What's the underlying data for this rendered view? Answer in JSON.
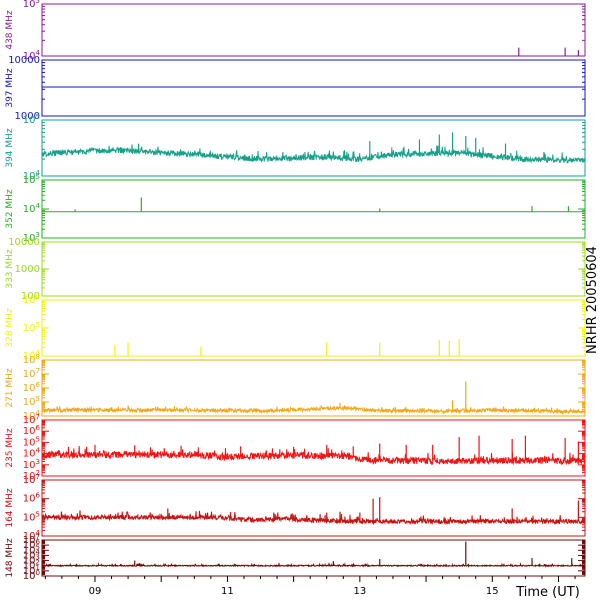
{
  "side_label": "NRHR 20050604",
  "x_axis_label": "Time (UT)",
  "x_ticks": [
    "09",
    "11",
    "13",
    "15"
  ],
  "chart_data": {
    "type": "line",
    "title": "",
    "xlabel": "Time (UT)",
    "x_unit": "hours UT",
    "xlim": [
      8.2,
      16.4
    ],
    "x_tick_values": [
      9,
      11,
      13,
      15
    ],
    "x_tick_labels": [
      "09",
      "11",
      "13",
      "15"
    ],
    "panels": [
      {
        "name": "438 MHz",
        "color": "#8b1a9a",
        "log": true,
        "ylim": [
          10000,
          100000
        ],
        "y_ticks": [
          {
            "v": 10000,
            "m": "10",
            "e": "4"
          },
          {
            "v": 100000,
            "m": "10",
            "e": "5"
          }
        ],
        "baseline": 10000,
        "jitter": 0,
        "noise_hi": 1.0,
        "level_segments": [],
        "bursts": [
          [
            15.4,
            14500
          ],
          [
            16.1,
            14500
          ],
          [
            16.3,
            13000
          ]
        ]
      },
      {
        "name": "397 MHz",
        "color": "#1414c8",
        "log": true,
        "ylim": [
          1000,
          10000
        ],
        "y_ticks": [
          {
            "v": 1000,
            "m": "1000",
            "e": ""
          },
          {
            "v": 10000,
            "m": "10000",
            "e": ""
          }
        ],
        "baseline": 3300,
        "jitter": 0,
        "noise_hi": 1.0,
        "level_segments": [],
        "bursts": []
      },
      {
        "name": "394 MHz",
        "color": "#16a08a",
        "log": true,
        "ylim": [
          10000,
          100000
        ],
        "y_ticks": [
          {
            "v": 10000,
            "m": "10",
            "e": "4"
          },
          {
            "v": 100000,
            "m": "10",
            "e": "5"
          }
        ],
        "baseline": 29000,
        "jitter": 0.05,
        "noise_hi": 1.25,
        "level_segments": [
          [
            8.2,
            25000
          ],
          [
            9.3,
            29000
          ],
          [
            10.5,
            24000
          ],
          [
            11.5,
            20000
          ],
          [
            12.5,
            22000
          ],
          [
            13.0,
            20000
          ],
          [
            13.5,
            24000
          ],
          [
            14.5,
            26000
          ],
          [
            15.5,
            20000
          ],
          [
            16.4,
            19000
          ]
        ],
        "bursts": [
          [
            13.15,
            42000
          ],
          [
            13.9,
            45000
          ],
          [
            14.2,
            55000
          ],
          [
            14.4,
            60000
          ],
          [
            14.6,
            52000
          ],
          [
            14.75,
            48000
          ],
          [
            15.2,
            38000
          ]
        ]
      },
      {
        "name": "352 MHz",
        "color": "#26b026",
        "log": true,
        "ylim": [
          1000,
          100000
        ],
        "y_ticks": [
          {
            "v": 1000,
            "m": "10",
            "e": "3"
          },
          {
            "v": 10000,
            "m": "10",
            "e": "4"
          },
          {
            "v": 100000,
            "m": "10",
            "e": "5"
          }
        ],
        "baseline": 8000,
        "jitter": 0,
        "noise_hi": 1.0,
        "level_segments": [],
        "bursts": [
          [
            8.7,
            9800
          ],
          [
            9.7,
            25000
          ],
          [
            13.3,
            10500
          ],
          [
            15.6,
            12500
          ],
          [
            16.15,
            12500
          ]
        ]
      },
      {
        "name": "333 MHz",
        "color": "#9adc1a",
        "log": true,
        "ylim": [
          100,
          10000
        ],
        "y_ticks": [
          {
            "v": 100,
            "m": "100",
            "e": ""
          },
          {
            "v": 1000,
            "m": "1000",
            "e": ""
          },
          {
            "v": 10000,
            "m": "10000",
            "e": ""
          }
        ],
        "baseline": 10000,
        "jitter": 0,
        "noise_hi": 1.0,
        "level_segments": [],
        "bursts": []
      },
      {
        "name": "328 MHz",
        "color": "#f2f20a",
        "log": true,
        "ylim": [
          10000,
          1000000
        ],
        "y_ticks": [
          {
            "v": 10000,
            "m": "10",
            "e": "4"
          },
          {
            "v": 100000,
            "m": "10",
            "e": "5"
          },
          {
            "v": 1000000,
            "m": "10",
            "e": "6"
          }
        ],
        "baseline": 10000,
        "jitter": 0,
        "noise_hi": 1.0,
        "level_segments": [],
        "bursts": [
          [
            9.3,
            25000
          ],
          [
            9.5,
            30000
          ],
          [
            10.6,
            22000
          ],
          [
            12.5,
            30000
          ],
          [
            13.3,
            30000
          ],
          [
            14.2,
            38000
          ],
          [
            14.35,
            35000
          ],
          [
            14.5,
            40000
          ]
        ]
      },
      {
        "name": "271 MHz",
        "color": "#f0a814",
        "log": true,
        "ylim": [
          10000,
          100000000
        ],
        "y_ticks": [
          {
            "v": 10000,
            "m": "10",
            "e": "4"
          },
          {
            "v": 100000,
            "m": "10",
            "e": "5"
          },
          {
            "v": 1000000,
            "m": "10",
            "e": "6"
          },
          {
            "v": 10000000,
            "m": "10",
            "e": "7"
          },
          {
            "v": 100000000,
            "m": "10",
            "e": "8"
          }
        ],
        "baseline": 25000,
        "jitter": 0.12,
        "noise_hi": 1.5,
        "level_segments": [
          [
            8.2,
            26000
          ],
          [
            10.5,
            26000
          ],
          [
            11.5,
            22000
          ],
          [
            12.2,
            30000
          ],
          [
            12.8,
            38000
          ],
          [
            13.2,
            25000
          ],
          [
            14.5,
            22000
          ],
          [
            15.0,
            26000
          ],
          [
            16.4,
            20000
          ]
        ],
        "bursts": [
          [
            9.5,
            55000
          ],
          [
            10.2,
            50000
          ],
          [
            12.7,
            85000
          ],
          [
            14.4,
            130000
          ],
          [
            14.6,
            3000000
          ]
        ]
      },
      {
        "name": "235 MHz",
        "color": "#f01414",
        "log": true,
        "ylim": [
          100,
          10000000
        ],
        "y_ticks": [
          {
            "v": 100,
            "m": "10",
            "e": "2"
          },
          {
            "v": 1000,
            "m": "10",
            "e": "3"
          },
          {
            "v": 10000,
            "m": "10",
            "e": "4"
          },
          {
            "v": 100000,
            "m": "10",
            "e": "5"
          },
          {
            "v": 1000000,
            "m": "10",
            "e": "6"
          },
          {
            "v": 10000000,
            "m": "10",
            "e": "7"
          }
        ],
        "baseline": 8000,
        "jitter": 0.3,
        "noise_hi": 3.0,
        "level_segments": [
          [
            8.2,
            8000
          ],
          [
            10.5,
            8000
          ],
          [
            11.0,
            5000
          ],
          [
            11.5,
            6000
          ],
          [
            12.0,
            7000
          ],
          [
            12.8,
            6000
          ],
          [
            13.1,
            2500
          ],
          [
            14.5,
            2200
          ],
          [
            15.5,
            2500
          ],
          [
            16.4,
            2200
          ]
        ],
        "bursts": [
          [
            8.6,
            40000
          ],
          [
            9.0,
            60000
          ],
          [
            9.6,
            55000
          ],
          [
            10.3,
            50000
          ],
          [
            11.2,
            45000
          ],
          [
            12.0,
            40000
          ],
          [
            12.5,
            60000
          ],
          [
            12.9,
            45000
          ],
          [
            13.3,
            80000
          ],
          [
            13.7,
            60000
          ],
          [
            14.1,
            60000
          ],
          [
            14.5,
            300000
          ],
          [
            14.8,
            400000
          ],
          [
            15.3,
            200000
          ],
          [
            15.5,
            400000
          ],
          [
            16.1,
            250000
          ],
          [
            16.3,
            120000
          ]
        ]
      },
      {
        "name": "164 MHz",
        "color": "#c81010",
        "log": true,
        "ylim": [
          10000,
          10000000
        ],
        "y_ticks": [
          {
            "v": 10000,
            "m": "10",
            "e": "4"
          },
          {
            "v": 100000,
            "m": "10",
            "e": "5"
          },
          {
            "v": 1000000,
            "m": "10",
            "e": "6"
          },
          {
            "v": 10000000,
            "m": "10",
            "e": "7"
          }
        ],
        "baseline": 100000,
        "jitter": 0.12,
        "noise_hi": 1.8,
        "level_segments": [
          [
            8.2,
            100000
          ],
          [
            10.8,
            100000
          ],
          [
            11.4,
            70000
          ],
          [
            11.9,
            90000
          ],
          [
            12.0,
            75000
          ],
          [
            13.0,
            60000
          ],
          [
            14.0,
            60000
          ],
          [
            16.4,
            60000
          ]
        ],
        "bursts": [
          [
            10.1,
            300000
          ],
          [
            11.7,
            180000
          ],
          [
            12.5,
            180000
          ],
          [
            12.7,
            200000
          ],
          [
            13.0,
            180000
          ],
          [
            13.2,
            1000000
          ],
          [
            13.3,
            1200000
          ],
          [
            15.3,
            300000
          ],
          [
            16.3,
            800000
          ]
        ]
      },
      {
        "name": "148 MHz",
        "color": "#6e0a0a",
        "log": true,
        "ylim": [
          1,
          10000000
        ],
        "y_ticks": [
          {
            "v": 1,
            "m": "10",
            "e": "0"
          },
          {
            "v": 10,
            "m": "10",
            "e": "1"
          },
          {
            "v": 100,
            "m": "10",
            "e": "2"
          },
          {
            "v": 1000,
            "m": "10",
            "e": "3"
          },
          {
            "v": 10000,
            "m": "10",
            "e": "4"
          },
          {
            "v": 100000,
            "m": "10",
            "e": "5"
          },
          {
            "v": 1000000,
            "m": "10",
            "e": "6"
          },
          {
            "v": 10000000,
            "m": "10",
            "e": "7"
          }
        ],
        "baseline": 100,
        "jitter": 0.1,
        "noise_hi": 2.0,
        "level_segments": [],
        "bursts": [
          [
            9.6,
            1000
          ],
          [
            12.6,
            800
          ],
          [
            13.3,
            2000
          ],
          [
            14.6,
            5000000
          ],
          [
            15.6,
            3000
          ],
          [
            16.2,
            3000
          ]
        ]
      }
    ]
  }
}
